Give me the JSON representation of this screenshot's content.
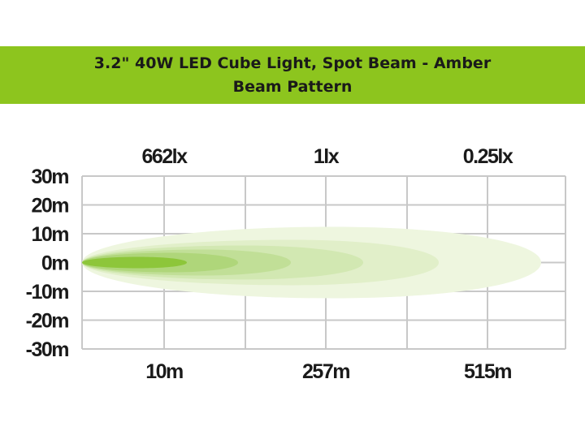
{
  "header": {
    "title_line1": "3.2\" 40W LED Cube Light, Spot Beam - Amber",
    "title_line2": "Beam Pattern"
  },
  "colors": {
    "banner": "#8dc51e",
    "grid": "#c8c8c8",
    "beam_layers": [
      "#eef6df",
      "#e1efc9",
      "#d2e8b2",
      "#c1df97",
      "#afd67a",
      "#8dc63a"
    ]
  },
  "chart_data": {
    "type": "area",
    "y_ticks": [
      "30m",
      "20m",
      "10m",
      "0m",
      "-10m",
      "-20m",
      "-30m"
    ],
    "x_ticks": [
      "10m",
      "257m",
      "515m"
    ],
    "lux_labels": [
      "662lx",
      "1lx",
      "0.25lx"
    ],
    "ylim": [
      -30,
      30
    ],
    "grid": true
  }
}
